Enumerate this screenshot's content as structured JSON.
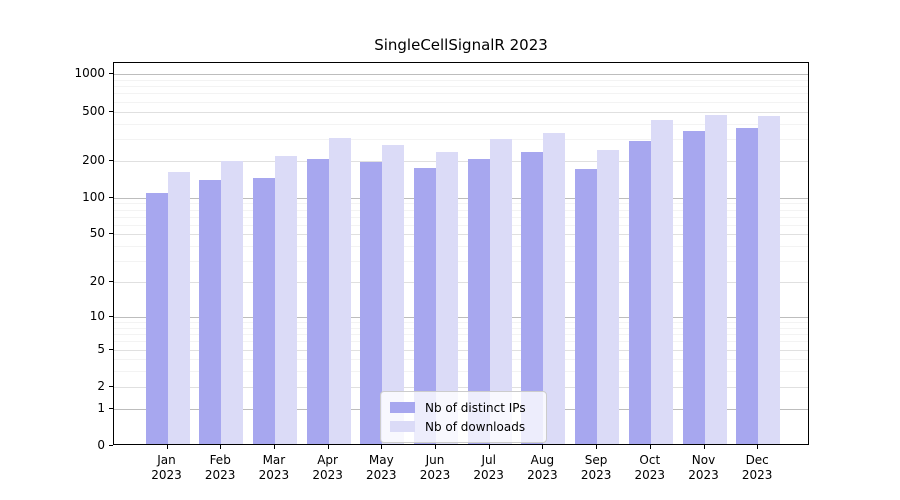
{
  "chart_data": {
    "type": "bar",
    "title": "SingleCellSignalR 2023",
    "x_categories": [
      "Jan",
      "Feb",
      "Mar",
      "Apr",
      "May",
      "Jun",
      "Jul",
      "Aug",
      "Sep",
      "Oct",
      "Nov",
      "Dec"
    ],
    "x_year": "2023",
    "x_tick_labels": [
      "Jan 2023",
      "Feb 2023",
      "Mar 2023",
      "Apr 2023",
      "May 2023",
      "Jun 2023",
      "Jul 2023",
      "Aug 2023",
      "Sep 2023",
      "Oct 2023",
      "Nov 2023",
      "Dec 2023"
    ],
    "series": [
      {
        "name": "Nb of distinct IPs",
        "color": "#a7a7ef",
        "values": [
          105,
          135,
          140,
          200,
          188,
          168,
          200,
          225,
          164,
          277,
          335,
          353
        ]
      },
      {
        "name": "Nb of downloads",
        "color": "#dbdbf7",
        "values": [
          155,
          190,
          212,
          295,
          257,
          227,
          290,
          322,
          234,
          410,
          448,
          445
        ]
      }
    ],
    "yscale": "log1p",
    "ytick_labels": [
      1000,
      500,
      200,
      100,
      50,
      20,
      10,
      5,
      2,
      1,
      0
    ],
    "ylim": [
      0,
      1250
    ],
    "grid": "both",
    "legend_position": "lower center",
    "colors": {
      "decade_grid": "#bdbdbd",
      "labeled_grid": "#e0e0e0",
      "minor_grid": "#f3f3f3",
      "spine": "#000000",
      "text": "#000000",
      "background": "#ffffff"
    }
  }
}
